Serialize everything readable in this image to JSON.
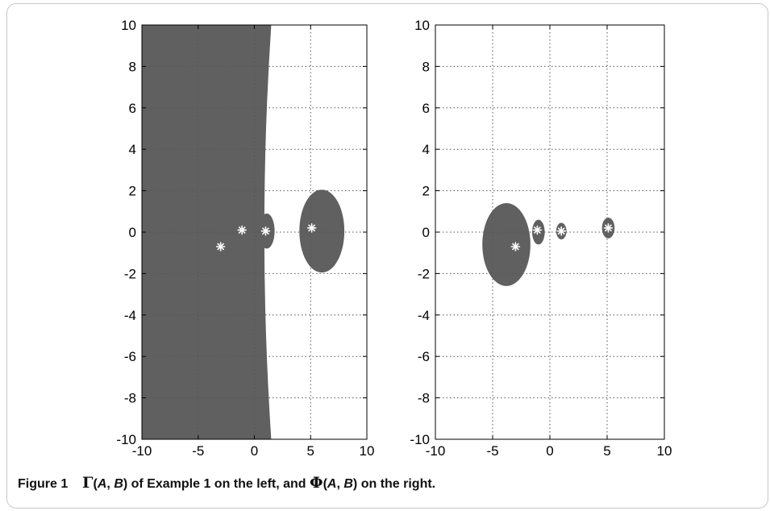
{
  "caption": {
    "figure_label": "Figure 1",
    "gamma_symbol": "Γ",
    "phi_symbol": "Φ",
    "args_A": "A",
    "args_comma": ", ",
    "args_B": "B",
    "part1": " of Example 1 on the left, and ",
    "part2": " on the right."
  },
  "colors": {
    "region_fill": "#606060",
    "marker": "#ffffff",
    "grid": "#555555",
    "axis": "#000000"
  },
  "chart_data": [
    {
      "type": "scatter",
      "title": "",
      "xlabel": "",
      "ylabel": "",
      "xlim": [
        -10,
        10
      ],
      "ylim": [
        -10,
        10
      ],
      "x_ticks": [
        -10,
        -5,
        0,
        5,
        10
      ],
      "y_ticks": [
        -10,
        -8,
        -6,
        -4,
        -2,
        0,
        2,
        4,
        6,
        8,
        10
      ],
      "x_tick_labels": [
        "-10",
        "-5",
        "0",
        "5",
        "10"
      ],
      "y_tick_labels": [
        "-10",
        "-8",
        "-6",
        "-4",
        "-2",
        "0",
        "2",
        "4",
        "6",
        "8",
        "10"
      ],
      "grid": true,
      "grid_style": "dotted",
      "marker_symbol": "*",
      "points": [
        {
          "x": -3.0,
          "y": -0.7
        },
        {
          "x": -1.1,
          "y": 0.1
        },
        {
          "x": 1.0,
          "y": 0.05
        },
        {
          "x": 5.1,
          "y": 0.2
        }
      ],
      "regions": [
        {
          "shape": "left-halfplane",
          "boundary_top_x": 1.5,
          "boundary_mid_x": 0.7,
          "boundary_bottom_x": 1.5
        },
        {
          "shape": "ellipse",
          "cx": 1.1,
          "cy": 0.05,
          "rx": 0.7,
          "ry": 0.85
        },
        {
          "shape": "ellipse",
          "cx": 6.0,
          "cy": 0.05,
          "rx": 2.0,
          "ry": 2.0
        }
      ]
    },
    {
      "type": "scatter",
      "title": "",
      "xlabel": "",
      "ylabel": "",
      "xlim": [
        -10,
        10
      ],
      "ylim": [
        -10,
        10
      ],
      "x_ticks": [
        -10,
        -5,
        0,
        5,
        10
      ],
      "y_ticks": [
        -10,
        -8,
        -6,
        -4,
        -2,
        0,
        2,
        4,
        6,
        8,
        10
      ],
      "x_tick_labels": [
        "-10",
        "-5",
        "0",
        "5",
        "10"
      ],
      "y_tick_labels": [
        "-10",
        "-8",
        "-6",
        "-4",
        "-2",
        "0",
        "2",
        "4",
        "6",
        "8",
        "10"
      ],
      "grid": true,
      "grid_style": "dotted",
      "marker_symbol": "*",
      "points": [
        {
          "x": -3.0,
          "y": -0.7
        },
        {
          "x": -1.1,
          "y": 0.1
        },
        {
          "x": 1.0,
          "y": 0.05
        },
        {
          "x": 5.1,
          "y": 0.2
        }
      ],
      "regions": [
        {
          "shape": "ellipse",
          "cx": -3.8,
          "cy": -0.6,
          "rx": 2.1,
          "ry": 2.0
        },
        {
          "shape": "ellipse",
          "cx": -1.0,
          "cy": 0.0,
          "rx": 0.55,
          "ry": 0.6
        },
        {
          "shape": "ellipse",
          "cx": 1.0,
          "cy": 0.05,
          "rx": 0.45,
          "ry": 0.4
        },
        {
          "shape": "ellipse",
          "cx": 5.1,
          "cy": 0.2,
          "rx": 0.55,
          "ry": 0.5
        }
      ]
    }
  ]
}
